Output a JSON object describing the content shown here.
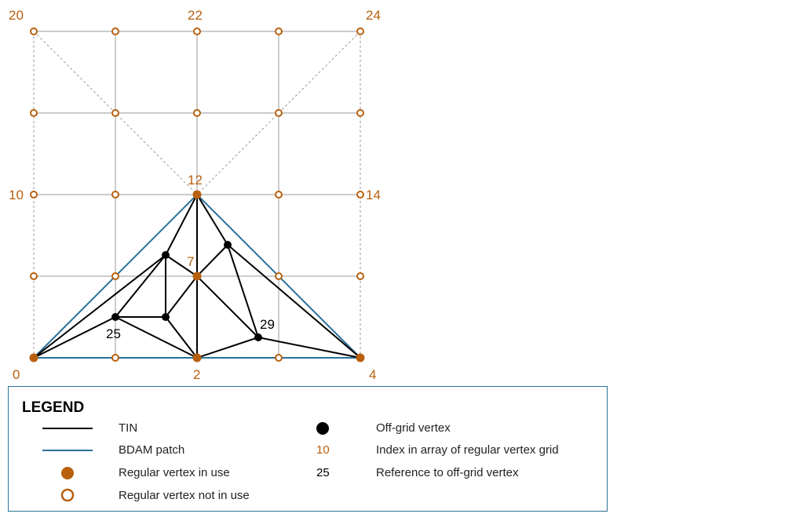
{
  "diagram": {
    "grid": {
      "cols": 5,
      "rows": 5
    },
    "vertex_labels": {
      "v20": "20",
      "v22": "22",
      "v24": "24",
      "v10": "10",
      "v12": "12",
      "v14": "14",
      "v7": "7",
      "v0": "0",
      "v2": "2",
      "v4": "4"
    },
    "offgrid_labels": {
      "p25": "25",
      "p29": "29"
    },
    "colors": {
      "orange": "#b8600e",
      "blue": "#2b7197",
      "tin": "#000000",
      "grid": "#9a9a9a"
    }
  },
  "legend": {
    "title": "LEGEND",
    "tin": "TIN",
    "bdam": "BDAM patch",
    "in_use": "Regular vertex in use",
    "not_in_use": "Regular vertex not in use",
    "offgrid": "Off-grid vertex",
    "index_sample": "10",
    "index_desc": "Index in array of regular vertex grid",
    "ref_sample": "25",
    "ref_desc": "Reference to off-grid vertex"
  }
}
